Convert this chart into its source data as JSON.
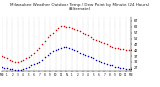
{
  "title": "Milwaukee Weather Outdoor Temp / Dew Point by Minute (24 Hours) (Alternate)",
  "title_fontsize": 3.0,
  "bg_color": "#ffffff",
  "plot_bg_color": "#ffffff",
  "grid_color": "#aaaaaa",
  "temp_color": "#dd0000",
  "dew_color": "#0000cc",
  "ylabel_right_vals": [
    67,
    62,
    57,
    52,
    47,
    42,
    37,
    32,
    27
  ],
  "ylim": [
    24,
    70
  ],
  "xlim": [
    0,
    1440
  ],
  "xtick_labels": [
    "MN",
    "1",
    "2",
    "3",
    "4",
    "5",
    "6",
    "7",
    "8",
    "9",
    "10",
    "11",
    "N",
    "1",
    "2",
    "3",
    "4",
    "5",
    "6",
    "7",
    "8",
    "9",
    "10",
    "11",
    "MN"
  ],
  "temp_x": [
    0,
    30,
    60,
    90,
    120,
    150,
    180,
    210,
    240,
    270,
    300,
    330,
    360,
    390,
    420,
    450,
    480,
    510,
    540,
    570,
    600,
    630,
    660,
    690,
    720,
    750,
    780,
    810,
    840,
    870,
    900,
    930,
    960,
    990,
    1020,
    1050,
    1080,
    1110,
    1140,
    1170,
    1200,
    1230,
    1260,
    1290,
    1320,
    1350,
    1380,
    1410,
    1440
  ],
  "temp_y": [
    37,
    36,
    35,
    34,
    33,
    32,
    32,
    33,
    34,
    35,
    36,
    38,
    40,
    42,
    44,
    47,
    50,
    53,
    55,
    57,
    59,
    61,
    63,
    63,
    62,
    62,
    61,
    60,
    59,
    58,
    57,
    56,
    55,
    53,
    52,
    51,
    50,
    49,
    48,
    47,
    46,
    45,
    44,
    44,
    43,
    43,
    42,
    42,
    42
  ],
  "dew_x": [
    0,
    30,
    60,
    90,
    120,
    150,
    180,
    210,
    240,
    270,
    300,
    330,
    360,
    390,
    420,
    450,
    480,
    510,
    540,
    570,
    600,
    630,
    660,
    690,
    720,
    750,
    780,
    810,
    840,
    870,
    900,
    930,
    960,
    990,
    1020,
    1050,
    1080,
    1110,
    1140,
    1170,
    1200,
    1230,
    1260,
    1290,
    1320,
    1350,
    1380,
    1410,
    1440
  ],
  "dew_y": [
    28,
    27,
    27,
    26,
    26,
    25,
    25,
    25,
    26,
    27,
    28,
    29,
    30,
    31,
    32,
    34,
    36,
    38,
    40,
    41,
    42,
    43,
    44,
    45,
    45,
    44,
    43,
    42,
    41,
    40,
    39,
    38,
    37,
    36,
    35,
    34,
    33,
    32,
    31,
    30,
    29,
    29,
    28,
    28,
    27,
    27,
    26,
    26,
    26
  ],
  "marker_size": 1.2,
  "grid_x_positions": [
    0,
    60,
    120,
    180,
    240,
    300,
    360,
    420,
    480,
    540,
    600,
    660,
    720,
    780,
    840,
    900,
    960,
    1020,
    1080,
    1140,
    1200,
    1260,
    1320,
    1380,
    1440
  ]
}
